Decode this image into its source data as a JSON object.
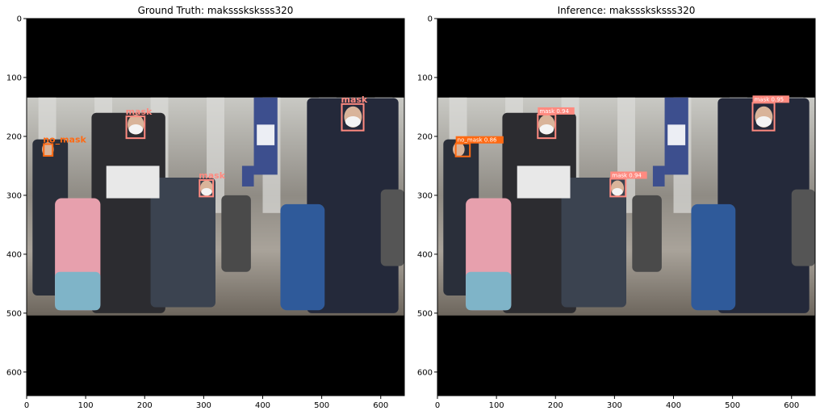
{
  "chart_data": [
    {
      "type": "image",
      "title": "Ground Truth: maksssksksss320",
      "xlim": [
        0,
        640
      ],
      "ylim": [
        640,
        0
      ],
      "xticks": [
        0,
        100,
        200,
        300,
        400,
        500,
        600
      ],
      "yticks": [
        0,
        100,
        200,
        300,
        400,
        500,
        600
      ],
      "photo_extent_y": [
        134,
        504
      ],
      "boxes": [
        {
          "label": "no_mask",
          "x1": 29,
          "y1": 213,
          "x2": 44,
          "y2": 233,
          "color": "#ff6a13"
        },
        {
          "label": "mask",
          "x1": 169,
          "y1": 166,
          "x2": 200,
          "y2": 203,
          "color": "#ff8a80"
        },
        {
          "label": "mask",
          "x1": 293,
          "y1": 274,
          "x2": 316,
          "y2": 302,
          "color": "#ff8a80"
        },
        {
          "label": "mask",
          "x1": 534,
          "y1": 145,
          "x2": 571,
          "y2": 190,
          "color": "#ff8a80"
        }
      ]
    },
    {
      "type": "image",
      "title": "Inference: maksssksksss320",
      "xlim": [
        0,
        640
      ],
      "ylim": [
        640,
        0
      ],
      "xticks": [
        0,
        100,
        200,
        300,
        400,
        500,
        600
      ],
      "yticks": [
        0,
        100,
        200,
        300,
        400,
        500,
        600
      ],
      "photo_extent_y": [
        134,
        504
      ],
      "boxes": [
        {
          "label": "no_mask 0.86",
          "x1": 31,
          "y1": 212,
          "x2": 55,
          "y2": 234,
          "color": "#ff6a13"
        },
        {
          "label": "mask 0.94",
          "x1": 170,
          "y1": 163,
          "x2": 200,
          "y2": 203,
          "color": "#ff8a80"
        },
        {
          "label": "mask 0.94",
          "x1": 293,
          "y1": 272,
          "x2": 319,
          "y2": 302,
          "color": "#ff8a80"
        },
        {
          "label": "mask 0.95",
          "x1": 534,
          "y1": 143,
          "x2": 571,
          "y2": 190,
          "color": "#ff8a80"
        }
      ]
    }
  ]
}
